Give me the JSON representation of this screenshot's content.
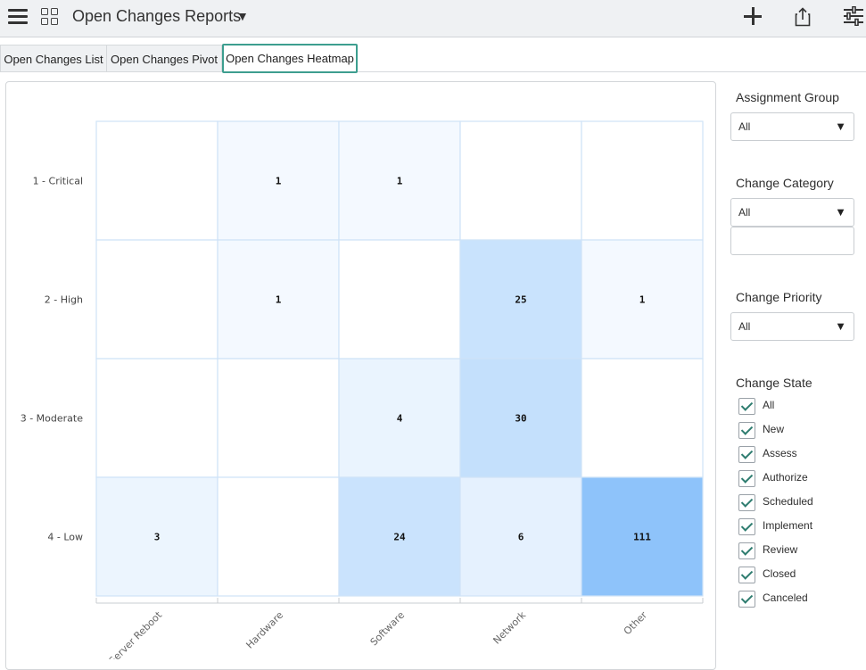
{
  "header": {
    "title": "Open Changes Reports",
    "icons": [
      "hamburger-menu-icon",
      "grid-icon",
      "chevron-down-icon",
      "plus-icon",
      "share-icon",
      "sliders-icon"
    ]
  },
  "tabs": [
    {
      "label": "Open Changes List",
      "active": false
    },
    {
      "label": "Open Changes Pivot",
      "active": false
    },
    {
      "label": "Open Changes Heatmap",
      "active": true
    }
  ],
  "chart_data": {
    "type": "heatmap",
    "title": "",
    "xlabel": "",
    "ylabel": "",
    "x_categories": [
      "Server Reboot",
      "Hardware",
      "Software",
      "Network",
      "Other"
    ],
    "y_categories": [
      "1 - Critical",
      "2 - High",
      "3 - Moderate",
      "4 - Low"
    ],
    "values": [
      [
        null,
        1,
        1,
        null,
        null
      ],
      [
        null,
        1,
        null,
        25,
        1
      ],
      [
        null,
        null,
        4,
        30,
        null
      ],
      [
        3,
        null,
        24,
        6,
        111
      ]
    ],
    "color_min": "#ffffff",
    "color_max": "#8ec3fa",
    "grid_color": "#cfe3f7"
  },
  "filters": {
    "assignment_group": {
      "label": "Assignment Group",
      "value": "All"
    },
    "change_category": {
      "label": "Change Category",
      "value": "All",
      "search_value": ""
    },
    "change_priority": {
      "label": "Change Priority",
      "value": "All"
    },
    "change_state": {
      "label": "Change State",
      "options": [
        {
          "label": "All",
          "checked": true
        },
        {
          "label": "New",
          "checked": true
        },
        {
          "label": "Assess",
          "checked": true
        },
        {
          "label": "Authorize",
          "checked": true
        },
        {
          "label": "Scheduled",
          "checked": true
        },
        {
          "label": "Implement",
          "checked": true
        },
        {
          "label": "Review",
          "checked": true
        },
        {
          "label": "Closed",
          "checked": true
        },
        {
          "label": "Canceled",
          "checked": true
        }
      ]
    }
  },
  "colors": {
    "accent": "#3d9e8f",
    "check": "#2f7d70"
  }
}
